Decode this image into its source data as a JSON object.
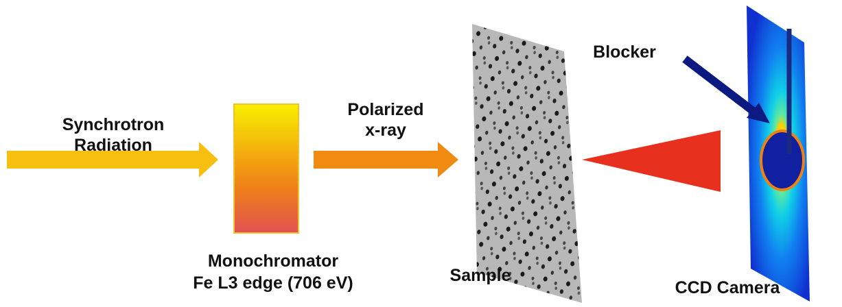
{
  "labels": {
    "source": [
      "Synchrotron",
      "Radiation"
    ],
    "beam": [
      "Polarized",
      "x-ray"
    ],
    "monochromator": [
      "Monochromator",
      "Fe L3 edge (706 eV)"
    ],
    "sample": "Sample",
    "blocker": "Blocker",
    "detector": "CCD Camera"
  }
}
